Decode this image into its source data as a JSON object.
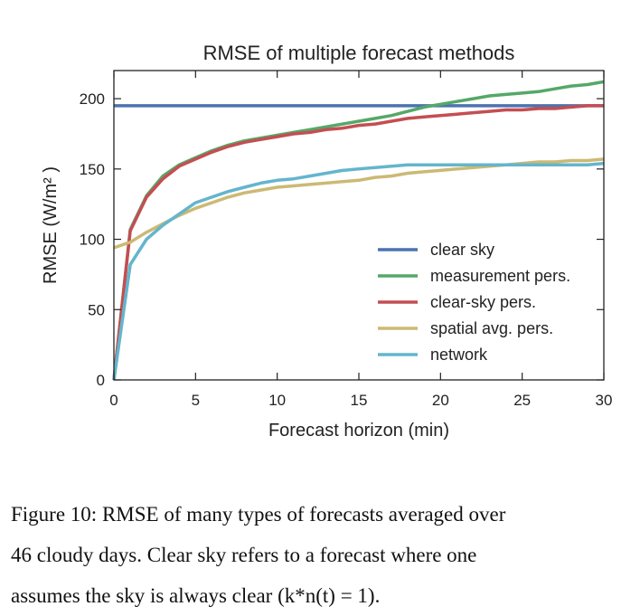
{
  "chart_data": {
    "type": "line",
    "title": "RMSE of multiple forecast methods",
    "xlabel": "Forecast horizon (min)",
    "ylabel": "RMSE (W/m² )",
    "xlim": [
      0,
      30
    ],
    "ylim": [
      0,
      220
    ],
    "xticks": [
      0,
      5,
      10,
      15,
      20,
      25,
      30
    ],
    "yticks": [
      0,
      50,
      100,
      150,
      200
    ],
    "grid": false,
    "legend_position": "lower-right",
    "x": [
      0,
      1,
      2,
      3,
      4,
      5,
      6,
      7,
      8,
      9,
      10,
      11,
      12,
      13,
      14,
      15,
      16,
      17,
      18,
      19,
      20,
      21,
      22,
      23,
      24,
      25,
      26,
      27,
      28,
      29,
      30
    ],
    "series": [
      {
        "name": "clear sky",
        "color": "#4c72b0",
        "values": [
          195,
          195,
          195,
          195,
          195,
          195,
          195,
          195,
          195,
          195,
          195,
          195,
          195,
          195,
          195,
          195,
          195,
          195,
          195,
          195,
          195,
          195,
          195,
          195,
          195,
          195,
          195,
          195,
          195,
          195,
          195
        ]
      },
      {
        "name": "measurement pers.",
        "color": "#55a868",
        "values": [
          0,
          107,
          131,
          145,
          153,
          158,
          163,
          167,
          170,
          172,
          174,
          176,
          178,
          180,
          182,
          184,
          186,
          188,
          191,
          194,
          196,
          198,
          200,
          202,
          203,
          204,
          205,
          207,
          209,
          210,
          212
        ]
      },
      {
        "name": "clear-sky pers.",
        "color": "#c44e52",
        "values": [
          0,
          106,
          130,
          143,
          152,
          157,
          162,
          166,
          169,
          171,
          173,
          175,
          176,
          178,
          179,
          181,
          182,
          184,
          186,
          187,
          188,
          189,
          190,
          191,
          192,
          192,
          193,
          193,
          194,
          195,
          195
        ]
      },
      {
        "name": "spatial avg. pers.",
        "color": "#ccb974",
        "values": [
          94,
          98,
          105,
          111,
          117,
          122,
          126,
          130,
          133,
          135,
          137,
          138,
          139,
          140,
          141,
          142,
          144,
          145,
          147,
          148,
          149,
          150,
          151,
          152,
          153,
          154,
          155,
          155,
          156,
          156,
          157
        ]
      },
      {
        "name": "network",
        "color": "#64b5cd",
        "values": [
          0,
          82,
          100,
          110,
          118,
          126,
          130,
          134,
          137,
          140,
          142,
          143,
          145,
          147,
          149,
          150,
          151,
          152,
          153,
          153,
          153,
          153,
          153,
          153,
          153,
          153,
          153,
          153,
          153,
          153,
          154
        ]
      }
    ]
  },
  "caption": {
    "lines": [
      "Figure 10: RMSE of many types of forecasts averaged over",
      "46 cloudy days.  Clear sky refers to a forecast where one",
      "assumes the sky is always clear (k*n(t) = 1)."
    ]
  }
}
